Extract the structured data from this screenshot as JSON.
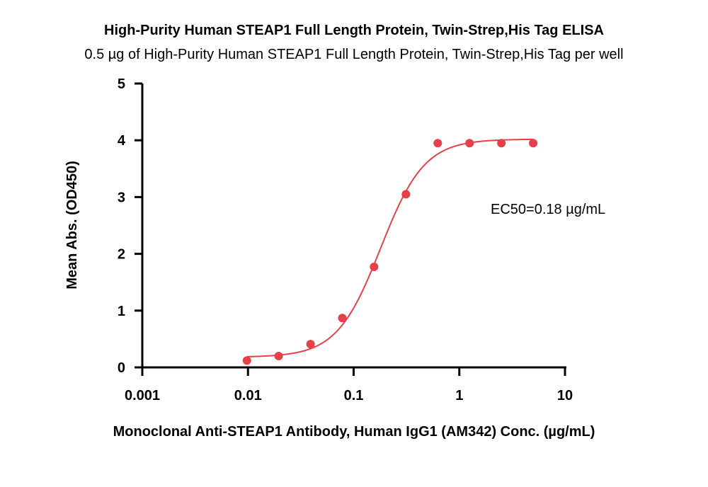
{
  "chart_data": {
    "type": "scatter",
    "title": "High-Purity Human STEAP1 Full Length Protein, Twin-Strep,His Tag ELISA",
    "subtitle": "0.5 µg of High-Purity Human STEAP1 Full Length Protein, Twin-Strep,His Tag per well",
    "xlabel": "Monoclonal Anti-STEAP1 Antibody, Human IgG1 (AM342) Conc. (µg/mL)",
    "ylabel": "Mean Abs. (OD450)",
    "xscale": "log",
    "xlim": [
      0.001,
      10
    ],
    "ylim": [
      0,
      5
    ],
    "x_ticks": [
      0.001,
      0.01,
      0.1,
      1,
      10
    ],
    "x_tick_labels": [
      "0.001",
      "0.01",
      "0.1",
      "1",
      "10"
    ],
    "y_ticks": [
      0,
      1,
      2,
      3,
      4,
      5
    ],
    "y_tick_labels": [
      "0",
      "1",
      "2",
      "3",
      "4",
      "5"
    ],
    "grid": false,
    "legend": "none",
    "color": "#e8404a",
    "series": [
      {
        "x": [
          0.00977,
          0.0195,
          0.0391,
          0.0781,
          0.156,
          0.3125,
          0.625,
          1.25,
          2.5,
          5
        ],
        "y": [
          0.12,
          0.2,
          0.41,
          0.87,
          1.77,
          3.05,
          3.95,
          3.95,
          3.95,
          3.95
        ]
      }
    ],
    "fit": {
      "model": "4PL",
      "bottom": 0.18,
      "top": 4.02,
      "ec50": 0.18,
      "hill": 2.1
    },
    "annotation": "EC50=0.18 µg/mL"
  }
}
